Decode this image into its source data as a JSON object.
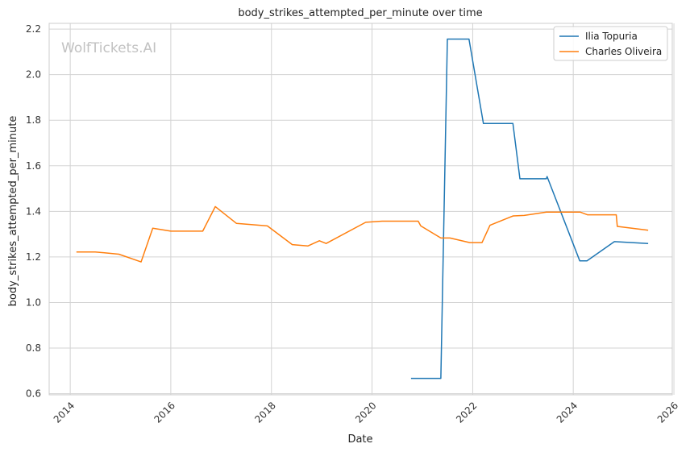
{
  "chart_data": {
    "type": "line",
    "title": "body_strikes_attempted_per_minute over time",
    "xlabel": "Date",
    "ylabel": "body_strikes_attempted_per_minute",
    "watermark": "WolfTickets.AI",
    "x_ticks": [
      "2014",
      "2016",
      "2018",
      "2020",
      "2022",
      "2024",
      "2026"
    ],
    "y_ticks": [
      "0.6",
      "0.8",
      "1.0",
      "1.2",
      "1.4",
      "1.6",
      "1.8",
      "2.0",
      "2.2"
    ],
    "xlim": [
      "2013-08-01",
      "2025-12-20"
    ],
    "ylim": [
      0.595,
      2.225
    ],
    "grid": true,
    "legend_position": "top-right",
    "series": [
      {
        "name": "Ilia Topuria",
        "color": "#1f77b4",
        "points": [
          [
            "2020-10-10",
            0.667
          ],
          [
            "2021-05-15",
            0.667
          ],
          [
            "2021-07-01",
            2.156
          ],
          [
            "2021-12-05",
            2.156
          ],
          [
            "2022-03-20",
            1.786
          ],
          [
            "2022-10-20",
            1.786
          ],
          [
            "2022-12-10",
            1.543
          ],
          [
            "2023-06-20",
            1.543
          ],
          [
            "2023-06-25",
            1.553
          ],
          [
            "2024-02-17",
            1.183
          ],
          [
            "2024-04-10",
            1.183
          ],
          [
            "2024-10-26",
            1.267
          ],
          [
            "2025-06-28",
            1.259
          ]
        ]
      },
      {
        "name": "Charles Oliveira",
        "color": "#ff7f0e",
        "points": [
          [
            "2014-02-15",
            1.222
          ],
          [
            "2014-07-01",
            1.222
          ],
          [
            "2014-12-20",
            1.212
          ],
          [
            "2015-05-30",
            1.178
          ],
          [
            "2015-08-23",
            1.326
          ],
          [
            "2016-01-01",
            1.313
          ],
          [
            "2016-08-20",
            1.313
          ],
          [
            "2016-11-19",
            1.421
          ],
          [
            "2017-04-22",
            1.347
          ],
          [
            "2017-12-02",
            1.336
          ],
          [
            "2018-06-01",
            1.254
          ],
          [
            "2018-09-22",
            1.248
          ],
          [
            "2018-12-15",
            1.271
          ],
          [
            "2019-02-02",
            1.259
          ],
          [
            "2019-11-16",
            1.352
          ],
          [
            "2020-03-14",
            1.357
          ],
          [
            "2020-12-01",
            1.357
          ],
          [
            "2020-12-20",
            1.336
          ],
          [
            "2021-05-15",
            1.283
          ],
          [
            "2021-07-20",
            1.283
          ],
          [
            "2021-12-11",
            1.263
          ],
          [
            "2022-03-10",
            1.263
          ],
          [
            "2022-05-07",
            1.339
          ],
          [
            "2022-10-22",
            1.38
          ],
          [
            "2023-01-10",
            1.382
          ],
          [
            "2023-06-20",
            1.397
          ],
          [
            "2024-02-20",
            1.397
          ],
          [
            "2024-04-13",
            1.385
          ],
          [
            "2024-11-08",
            1.385
          ],
          [
            "2024-11-16",
            1.334
          ],
          [
            "2025-06-28",
            1.317
          ]
        ]
      }
    ]
  }
}
